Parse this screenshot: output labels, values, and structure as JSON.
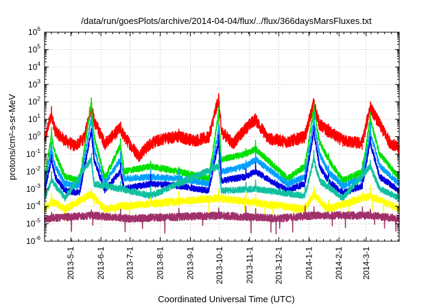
{
  "chart_data": {
    "type": "line",
    "title": "/data/run/goesPlots/archive/2014-04-04/flux/../flux/366daysMarsFluxes.txt",
    "xlabel": "Coordinated Universal Time (UTC)",
    "ylabel": "protons/cm²-s-sr-MeV",
    "yscale": "log",
    "ylim": [
      1e-06,
      1000000.0
    ],
    "xlim": [
      "2013-04-04",
      "2014-04-04"
    ],
    "grid": true,
    "x_ticks": [
      "2013-5-1",
      "2013-6-1",
      "2013-7-1",
      "2013-8-1",
      "2013-9-1",
      "2013-10-1",
      "2013-11-1",
      "2013-12-1",
      "2014-1-1",
      "2014-2-1",
      "2014-3-1"
    ],
    "y_ticks": [
      {
        "base": "10",
        "exp": "-6"
      },
      {
        "base": "10",
        "exp": "-5"
      },
      {
        "base": "10",
        "exp": "-4"
      },
      {
        "base": "10",
        "exp": "-3"
      },
      {
        "base": "10",
        "exp": "-2"
      },
      {
        "base": "10",
        "exp": "-1"
      },
      {
        "base": "10",
        "exp": "0"
      },
      {
        "base": "10",
        "exp": "1"
      },
      {
        "base": "10",
        "exp": "2"
      },
      {
        "base": "10",
        "exp": "3"
      },
      {
        "base": "10",
        "exp": "4"
      },
      {
        "base": "10",
        "exp": "5"
      },
      {
        "base": "10",
        "exp": "6"
      }
    ],
    "event_dates": [
      "2013-04-11",
      "2013-05-22",
      "2013-06-21",
      "2013-07-22",
      "2013-08-20",
      "2013-09-30",
      "2013-10-28",
      "2013-11-07",
      "2013-12-28",
      "2014-01-06",
      "2014-01-21",
      "2014-02-25",
      "2014-03-05"
    ],
    "series": [
      {
        "color": "#ff0000",
        "x": [
          "2013-04-04",
          "2013-04-11",
          "2013-04-15",
          "2013-04-25",
          "2013-05-05",
          "2013-05-15",
          "2013-05-22",
          "2013-05-25",
          "2013-06-05",
          "2013-06-21",
          "2013-06-25",
          "2013-07-10",
          "2013-07-22",
          "2013-08-05",
          "2013-08-20",
          "2013-09-05",
          "2013-09-20",
          "2013-09-30",
          "2013-10-03",
          "2013-10-15",
          "2013-10-28",
          "2013-11-07",
          "2013-11-20",
          "2013-12-10",
          "2013-12-28",
          "2014-01-06",
          "2014-01-12",
          "2014-01-21",
          "2014-02-05",
          "2014-02-25",
          "2014-03-05",
          "2014-03-15",
          "2014-03-25",
          "2014-04-04"
        ],
        "y": [
          0.6,
          20,
          2,
          0.6,
          0.3,
          0.8,
          60,
          8,
          0.4,
          3,
          1,
          0.08,
          0.4,
          0.8,
          1,
          0.6,
          0.9,
          150,
          2,
          0.4,
          3,
          10,
          0.8,
          0.5,
          1,
          80,
          5,
          2,
          0.6,
          0.4,
          50,
          5,
          0.5,
          0.2
        ]
      },
      {
        "color": "#00e000",
        "x": [
          "2013-04-04",
          "2013-04-11",
          "2013-04-15",
          "2013-04-25",
          "2013-05-10",
          "2013-05-22",
          "2013-05-25",
          "2013-06-05",
          "2013-06-21",
          "2013-06-25",
          "2013-07-22",
          "2013-08-20",
          "2013-09-20",
          "2013-09-30",
          "2013-10-03",
          "2013-10-28",
          "2013-11-07",
          "2013-12-10",
          "2013-12-28",
          "2014-01-06",
          "2014-01-12",
          "2014-01-21",
          "2014-02-05",
          "2014-02-25",
          "2014-03-05",
          "2014-03-15",
          "2014-04-04"
        ],
        "y": [
          0.004,
          1,
          0.1,
          0.005,
          0.003,
          80,
          1,
          0.004,
          0.3,
          0.01,
          0.02,
          0.01,
          0.004,
          20,
          0.05,
          0.1,
          0.2,
          0.004,
          0.02,
          40,
          0.5,
          0.05,
          0.003,
          0.01,
          10,
          0.1,
          0.004
        ]
      },
      {
        "color": "#00a0ff",
        "x": [
          "2013-04-04",
          "2013-04-11",
          "2013-04-15",
          "2013-04-25",
          "2013-05-10",
          "2013-05-22",
          "2013-05-25",
          "2013-06-05",
          "2013-06-21",
          "2013-06-25",
          "2013-07-22",
          "2013-08-20",
          "2013-09-20",
          "2013-09-30",
          "2013-10-03",
          "2013-10-28",
          "2013-11-07",
          "2013-12-10",
          "2013-12-28",
          "2014-01-06",
          "2014-01-12",
          "2014-01-21",
          "2014-02-05",
          "2014-02-25",
          "2014-03-05",
          "2014-03-15",
          "2014-04-04"
        ],
        "y": [
          0.002,
          0.2,
          0.02,
          0.002,
          0.0015,
          10,
          0.2,
          0.002,
          0.05,
          0.004,
          0.005,
          0.004,
          0.002,
          2,
          0.01,
          0.02,
          0.05,
          0.002,
          0.005,
          8,
          0.1,
          0.01,
          0.0015,
          0.004,
          2,
          0.02,
          0.002
        ]
      },
      {
        "color": "#0000e0",
        "x": [
          "2013-04-04",
          "2013-04-11",
          "2013-04-15",
          "2013-04-25",
          "2013-05-10",
          "2013-05-22",
          "2013-05-25",
          "2013-06-05",
          "2013-06-21",
          "2013-06-25",
          "2013-07-22",
          "2013-08-20",
          "2013-09-20",
          "2013-09-30",
          "2013-10-03",
          "2013-10-28",
          "2013-11-07",
          "2013-12-10",
          "2013-12-28",
          "2014-01-06",
          "2014-01-12",
          "2014-01-21",
          "2014-02-05",
          "2014-02-25",
          "2014-03-05",
          "2014-03-15",
          "2014-04-04"
        ],
        "y": [
          0.0008,
          0.05,
          0.005,
          0.0008,
          0.0006,
          2,
          0.05,
          0.0008,
          0.01,
          0.001,
          0.002,
          0.0015,
          0.0008,
          0.5,
          0.003,
          0.005,
          0.01,
          0.0008,
          0.002,
          2,
          0.02,
          0.003,
          0.0006,
          0.0015,
          0.5,
          0.005,
          0.0008
        ]
      },
      {
        "color": "#10c0a0",
        "x": [
          "2013-04-04",
          "2013-04-11",
          "2013-04-25",
          "2013-05-22",
          "2013-05-25",
          "2013-06-21",
          "2013-07-22",
          "2013-09-30",
          "2013-10-03",
          "2013-11-07",
          "2013-12-28",
          "2014-01-06",
          "2014-01-12",
          "2014-02-05",
          "2014-03-05",
          "2014-03-15",
          "2014-04-04"
        ],
        "y": [
          0.0003,
          0.003,
          0.0003,
          0.05,
          0.002,
          0.001,
          0.0004,
          0.02,
          0.0008,
          0.001,
          0.0004,
          0.05,
          0.003,
          0.0003,
          0.02,
          0.001,
          0.0003
        ]
      },
      {
        "color": "#ffff00",
        "x": [
          "2013-04-04",
          "2013-04-11",
          "2013-04-25",
          "2013-05-22",
          "2013-06-05",
          "2013-06-21",
          "2013-09-30",
          "2013-12-28",
          "2014-01-06",
          "2014-01-20",
          "2014-03-05",
          "2014-04-04"
        ],
        "y": [
          7e-05,
          0.0002,
          7e-05,
          0.0005,
          7e-05,
          0.0001,
          0.0003,
          7e-05,
          0.0005,
          7e-05,
          0.0004,
          7e-05
        ]
      },
      {
        "color": "#a0306a",
        "x": [
          "2013-04-04",
          "2013-05-22",
          "2013-07-01",
          "2013-09-30",
          "2013-12-01",
          "2014-01-06",
          "2014-03-05",
          "2014-04-04"
        ],
        "y": [
          2e-05,
          3e-05,
          2e-05,
          3e-05,
          2e-05,
          3e-05,
          3e-05,
          2e-05
        ]
      }
    ]
  }
}
